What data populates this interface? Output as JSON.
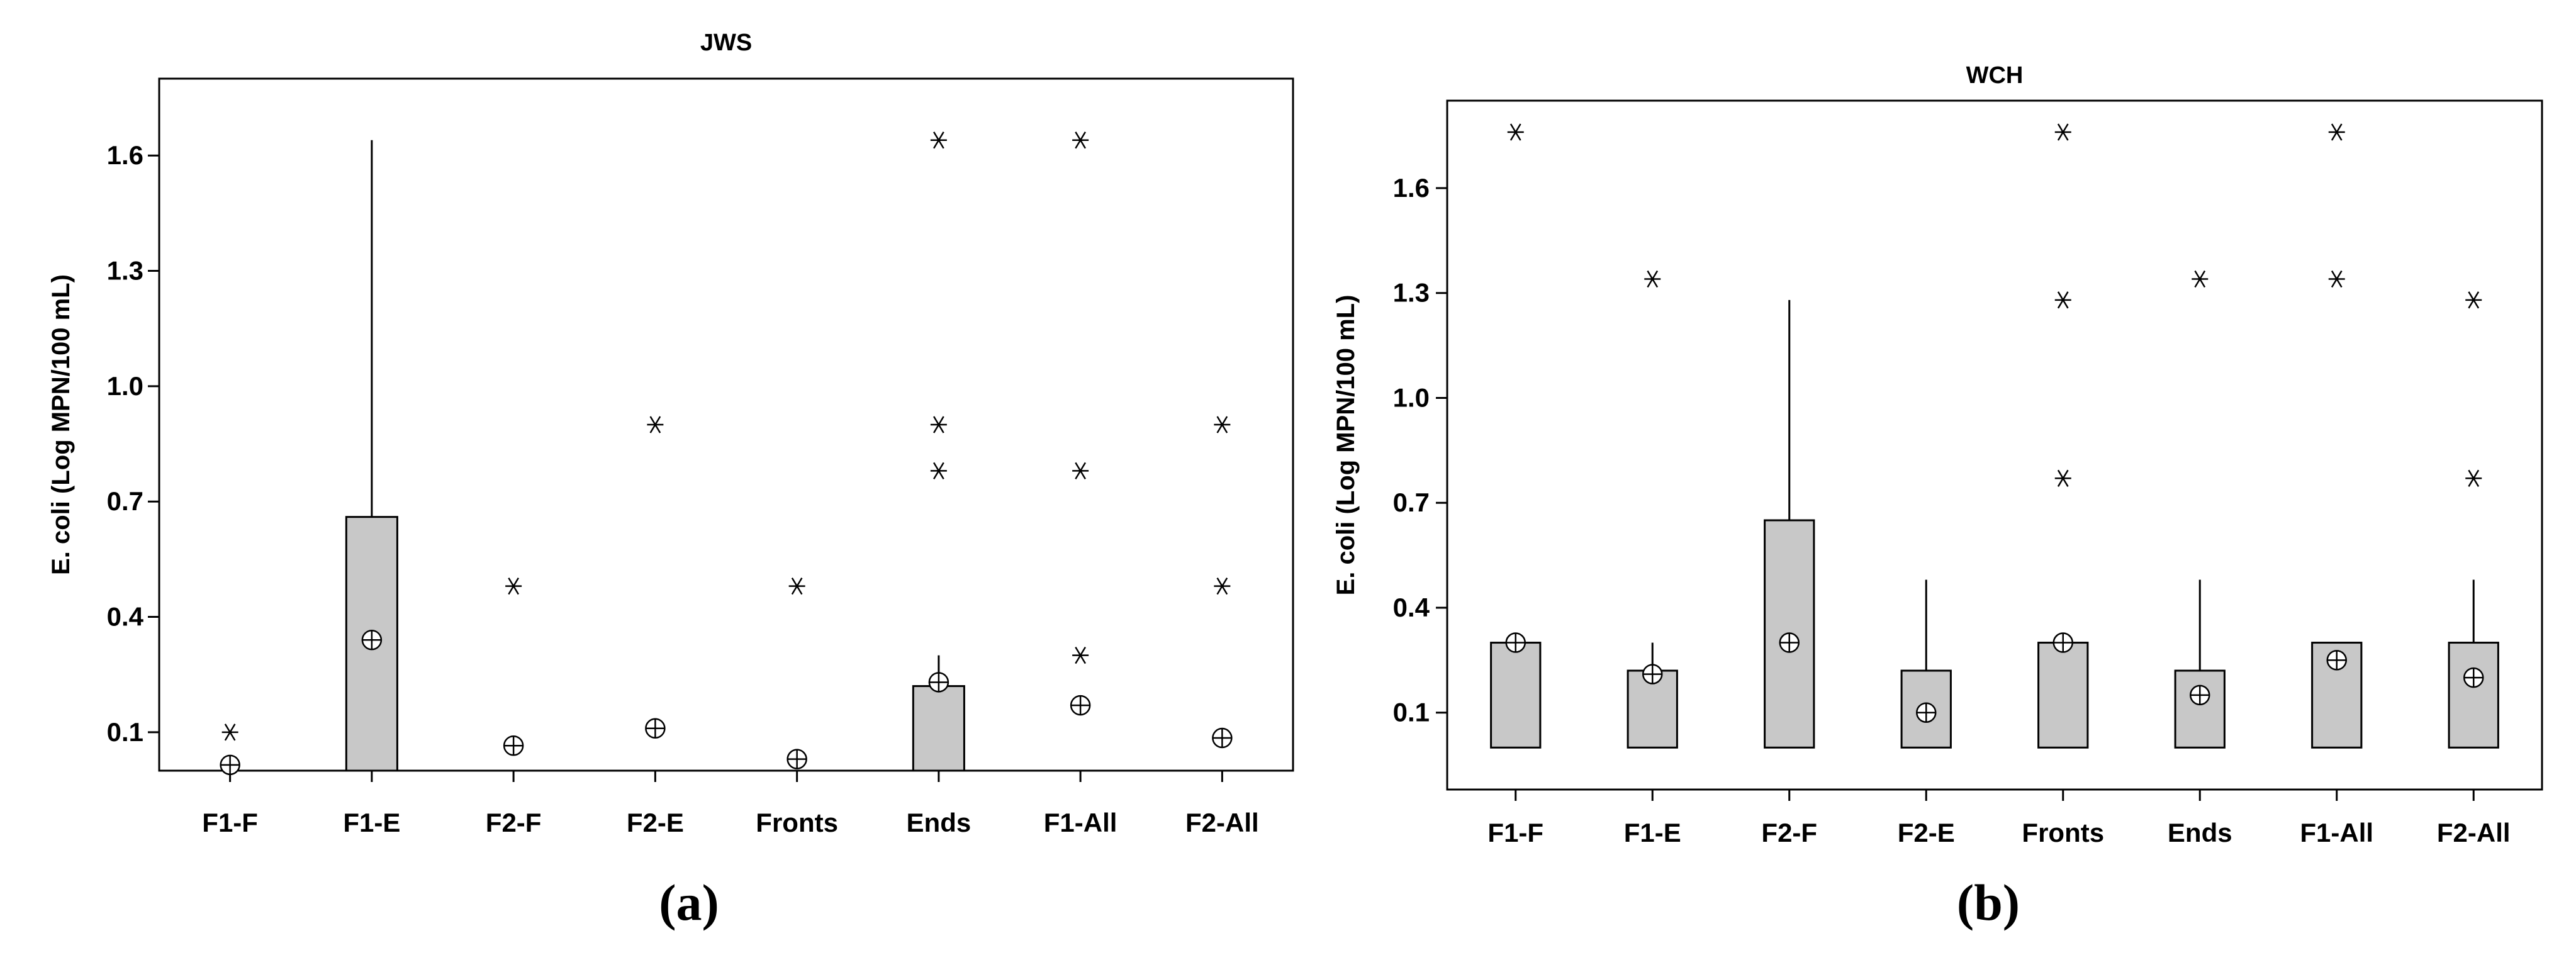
{
  "chart_data": [
    {
      "type": "box",
      "panel_label": "(a)",
      "title": "JWS",
      "ylabel": "E. coli (Log MPN/100 mL)",
      "ylim": [
        0.0,
        1.8
      ],
      "yticks": [
        "0.1",
        "0.4",
        "0.7",
        "1.0",
        "1.3",
        "1.6"
      ],
      "categories": [
        "F1-F",
        "F1-E",
        "F2-F",
        "F2-E",
        "Fronts",
        "Ends",
        "F1-All",
        "F2-All"
      ],
      "boxes": [
        {
          "q1": 0.0,
          "q3": 0.0,
          "whisker_low": 0.0,
          "whisker_high": 0.0,
          "mean": 0.015,
          "outliers": [
            0.1
          ]
        },
        {
          "q1": 0.0,
          "q3": 0.66,
          "whisker_low": 0.0,
          "whisker_high": 1.64,
          "mean": 0.34,
          "outliers": []
        },
        {
          "q1": 0.0,
          "q3": 0.0,
          "whisker_low": 0.0,
          "whisker_high": 0.0,
          "mean": 0.065,
          "outliers": [
            0.48
          ]
        },
        {
          "q1": 0.0,
          "q3": 0.0,
          "whisker_low": 0.0,
          "whisker_high": 0.0,
          "mean": 0.11,
          "outliers": [
            0.9
          ]
        },
        {
          "q1": 0.0,
          "q3": 0.0,
          "whisker_low": 0.0,
          "whisker_high": 0.0,
          "mean": 0.03,
          "outliers": [
            0.48
          ]
        },
        {
          "q1": 0.0,
          "q3": 0.22,
          "whisker_low": 0.0,
          "whisker_high": 0.3,
          "mean": 0.23,
          "outliers": [
            0.78,
            0.9,
            1.64
          ]
        },
        {
          "q1": 0.0,
          "q3": 0.0,
          "whisker_low": 0.0,
          "whisker_high": 0.0,
          "mean": 0.17,
          "outliers": [
            0.3,
            0.78,
            1.64
          ]
        },
        {
          "q1": 0.0,
          "q3": 0.0,
          "whisker_low": 0.0,
          "whisker_high": 0.0,
          "mean": 0.085,
          "outliers": [
            0.48,
            0.9
          ]
        }
      ],
      "grid": false,
      "legend": "none"
    },
    {
      "type": "box",
      "panel_label": "(b)",
      "title": "WCH",
      "ylabel": "E. coli (Log MPN/100 mL)",
      "ylim": [
        -0.12,
        1.85
      ],
      "yticks": [
        "0.1",
        "0.4",
        "0.7",
        "1.0",
        "1.3",
        "1.6"
      ],
      "categories": [
        "F1-F",
        "F1-E",
        "F2-F",
        "F2-E",
        "Fronts",
        "Ends",
        "F1-All",
        "F2-All"
      ],
      "boxes": [
        {
          "q1": 0.0,
          "q3": 0.3,
          "whisker_low": 0.0,
          "whisker_high": 0.3,
          "mean": 0.3,
          "outliers": [
            1.76
          ]
        },
        {
          "q1": 0.0,
          "q3": 0.22,
          "whisker_low": 0.0,
          "whisker_high": 0.3,
          "mean": 0.21,
          "outliers": [
            1.34
          ]
        },
        {
          "q1": 0.0,
          "q3": 0.65,
          "whisker_low": 0.0,
          "whisker_high": 1.28,
          "mean": 0.3,
          "outliers": []
        },
        {
          "q1": 0.0,
          "q3": 0.22,
          "whisker_low": 0.0,
          "whisker_high": 0.48,
          "mean": 0.1,
          "outliers": []
        },
        {
          "q1": 0.0,
          "q3": 0.3,
          "whisker_low": 0.0,
          "whisker_high": 0.3,
          "mean": 0.3,
          "outliers": [
            0.77,
            1.28,
            1.76
          ]
        },
        {
          "q1": 0.0,
          "q3": 0.22,
          "whisker_low": 0.0,
          "whisker_high": 0.48,
          "mean": 0.15,
          "outliers": [
            1.34
          ]
        },
        {
          "q1": 0.0,
          "q3": 0.3,
          "whisker_low": 0.0,
          "whisker_high": 0.3,
          "mean": 0.25,
          "outliers": [
            1.34,
            1.76
          ]
        },
        {
          "q1": 0.0,
          "q3": 0.3,
          "whisker_low": 0.0,
          "whisker_high": 0.48,
          "mean": 0.2,
          "outliers": [
            0.77,
            1.28
          ]
        }
      ],
      "grid": false,
      "legend": "none"
    }
  ],
  "colors": {
    "box_fill": "#c8c8c8",
    "stroke": "#000000",
    "background": "#ffffff"
  }
}
